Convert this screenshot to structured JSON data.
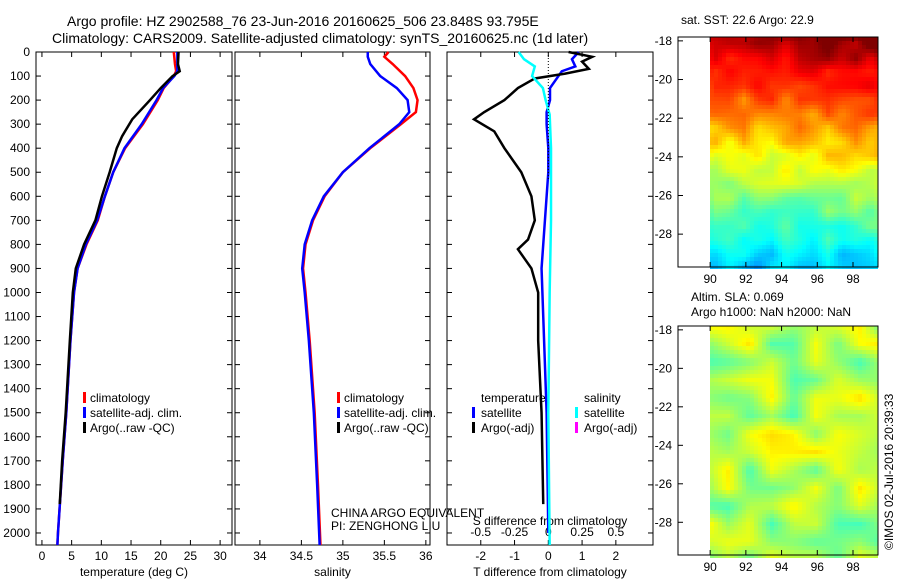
{
  "title_line1": "Argo profile: HZ 2902588_76 23-Jun-2016 20160625_506 23.848S 93.795E",
  "title_line2": "Climatology: CARS2009. Satellite-adjusted climatology: synTS_20160625.nc (1d later)",
  "colors": {
    "climatology": "#ff0000",
    "satellite": "#0000ff",
    "argo": "#000000",
    "sal_satellite": "#00ffff",
    "sal_argo": "#ff00ff"
  },
  "chart_data": [
    {
      "type": "line",
      "xlabel": "temperature (deg C)",
      "ylabel": "",
      "xlim": [
        -1,
        32
      ],
      "ylim": [
        2050,
        0
      ],
      "xticks": [
        0,
        5,
        10,
        15,
        20,
        25,
        30
      ],
      "yticks": [
        0,
        100,
        200,
        300,
        400,
        500,
        600,
        700,
        800,
        900,
        1000,
        1100,
        1200,
        1300,
        1400,
        1500,
        1600,
        1700,
        1800,
        1900,
        2000
      ],
      "legend": [
        "climatology",
        "satellite-adj. clim.",
        "Argo(..raw -QC)"
      ],
      "series": [
        {
          "name": "climatology",
          "color": "#ff0000",
          "depth": [
            0,
            50,
            80,
            100,
            150,
            200,
            300,
            400,
            500,
            600,
            700,
            800,
            900,
            1000,
            1200,
            1500,
            1700,
            2000,
            2050
          ],
          "values": [
            22.2,
            22.4,
            22.6,
            22.2,
            20.5,
            19.5,
            17,
            14,
            12,
            10.6,
            9.4,
            7.5,
            6,
            5.4,
            4.8,
            4.1,
            3.5,
            2.7,
            2.6
          ]
        },
        {
          "name": "satellite-adj. clim.",
          "color": "#0000ff",
          "depth": [
            0,
            50,
            80,
            100,
            150,
            200,
            300,
            400,
            500,
            600,
            700,
            800,
            900,
            1000,
            1200,
            1500,
            1700,
            2000,
            2050
          ],
          "values": [
            22.8,
            22.8,
            22.8,
            22.3,
            20.4,
            19.3,
            16.8,
            13.9,
            12,
            10.6,
            9.3,
            7.4,
            6,
            5.4,
            4.8,
            4.1,
            3.5,
            2.7,
            2.6
          ]
        },
        {
          "name": "Argo(..raw -QC)",
          "color": "#000000",
          "depth": [
            0,
            50,
            80,
            100,
            150,
            200,
            280,
            350,
            400,
            500,
            600,
            700,
            800,
            900,
            1000,
            1200,
            1500,
            1700,
            1880
          ],
          "values": [
            23,
            22.9,
            23.2,
            22,
            20,
            18.2,
            15.2,
            13.5,
            12.6,
            11.4,
            10.1,
            9,
            7.1,
            5.7,
            5.2,
            4.7,
            4,
            3.4,
            3.0
          ]
        }
      ]
    },
    {
      "type": "line",
      "xlabel": "salinity",
      "ylabel": "",
      "xlim": [
        33.7,
        36.05
      ],
      "ylim": [
        2050,
        0
      ],
      "xticks": [
        34,
        34.5,
        35,
        35.5,
        36
      ],
      "legend": [
        "climatology",
        "satellite-adj. clim.",
        "Argo(..raw -QC)"
      ],
      "annotations": [
        "CHINA ARGO EQUIVALENT",
        "PI: ZENGHONG LIU"
      ],
      "series": [
        {
          "name": "climatology",
          "color": "#ff0000",
          "depth": [
            0,
            20,
            50,
            100,
            150,
            200,
            250,
            300,
            400,
            500,
            600,
            700,
            800,
            900,
            1000,
            1200,
            1500,
            1800,
            2050
          ],
          "values": [
            35.55,
            35.5,
            35.6,
            35.75,
            35.85,
            35.9,
            35.88,
            35.7,
            35.33,
            35.0,
            34.78,
            34.64,
            34.55,
            34.52,
            34.55,
            34.6,
            34.66,
            34.7,
            34.73
          ]
        },
        {
          "name": "satellite-adj. clim.",
          "color": "#0000ff",
          "depth": [
            0,
            20,
            50,
            100,
            150,
            200,
            250,
            300,
            400,
            500,
            600,
            700,
            800,
            900,
            1000,
            1200,
            1500,
            1800,
            2050
          ],
          "values": [
            35.3,
            35.3,
            35.33,
            35.45,
            35.65,
            35.78,
            35.8,
            35.68,
            35.32,
            35.0,
            34.77,
            34.63,
            34.54,
            34.51,
            34.54,
            34.59,
            34.65,
            34.69,
            34.72
          ]
        }
      ]
    },
    {
      "type": "line",
      "xlabel": "T difference from climatology",
      "x2label": "S difference from climatology",
      "xlim": [
        -3,
        3.1
      ],
      "ylim": [
        2050,
        0
      ],
      "xticks": [
        -2,
        -1,
        0,
        1,
        2
      ],
      "x2ticks": [
        -0.5,
        -0.25,
        0,
        0.25,
        0.5
      ],
      "legend_headers": [
        "temperature",
        "salinity"
      ],
      "legend": [
        "satellite",
        "Argo(-adj)",
        "satellite",
        "Argo(-adj)"
      ],
      "series": [
        {
          "name": "T satellite",
          "color": "#0000ff",
          "depth": [
            0,
            30,
            60,
            80,
            100,
            150,
            200,
            250,
            300,
            400,
            500,
            700,
            900,
            1100,
            1500,
            2000
          ],
          "values": [
            0.9,
            0.7,
            0.8,
            0.4,
            0.3,
            0.05,
            0.05,
            -0.05,
            -0.05,
            0,
            0,
            -0.1,
            -0.2,
            -0.15,
            -0.05,
            0
          ]
        },
        {
          "name": "T Argo(-adj)",
          "color": "#000000",
          "depth": [
            0,
            20,
            40,
            70,
            90,
            110,
            150,
            200,
            250,
            280,
            330,
            400,
            500,
            600,
            700,
            780,
            820,
            860,
            900,
            1000,
            1200,
            1500,
            1880
          ],
          "values": [
            0.6,
            1.3,
            1.0,
            1.2,
            0.5,
            -0.4,
            -0.9,
            -1.3,
            -1.9,
            -2.2,
            -1.6,
            -1.3,
            -0.8,
            -0.5,
            -0.4,
            -0.6,
            -0.9,
            -0.7,
            -0.5,
            -0.3,
            -0.3,
            -0.2,
            -0.15
          ]
        },
        {
          "name": "S satellite",
          "color": "#00ffff",
          "depth": [
            0,
            30,
            60,
            100,
            150,
            200,
            260,
            400,
            700,
            1000,
            1500,
            2050
          ],
          "values": [
            -0.22,
            -0.18,
            -0.1,
            -0.12,
            -0.04,
            -0.02,
            0.01,
            0.02,
            0.02,
            0.01,
            0.0,
            0.01
          ]
        }
      ]
    },
    {
      "type": "heatmap",
      "title": "sat. SST: 22.6 Argo: 22.9",
      "xticks": [
        90,
        92,
        94,
        96,
        98
      ],
      "yticks": [
        -18,
        -20,
        -22,
        -24,
        -26,
        -28
      ],
      "xlim": [
        88.2,
        99.4
      ],
      "ylim": [
        -29.7,
        -17.8
      ]
    },
    {
      "type": "heatmap",
      "title_line1": "Altim. SLA: 0.069",
      "title_line2": "Argo h1000: NaN h2000: NaN",
      "xticks": [
        90,
        92,
        94,
        96,
        98
      ],
      "yticks": [
        -18,
        -20,
        -22,
        -24,
        -26,
        -28
      ],
      "xlim": [
        88.2,
        99.4
      ],
      "ylim": [
        -29.7,
        -17.8
      ]
    }
  ],
  "footer": "©IMOS 02-Jul-2016 20:39:33"
}
